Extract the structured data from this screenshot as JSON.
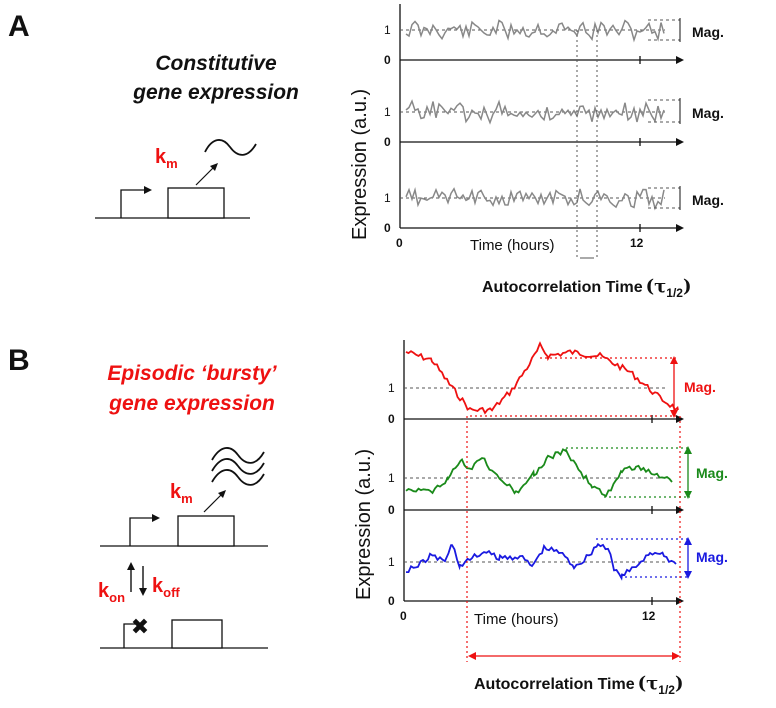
{
  "panel_a": {
    "letter": "A",
    "title_line1": "Constitutive",
    "title_line2": "gene expression",
    "rate_main": "k",
    "rate_sub": "m",
    "y_label": "Expression (a.u.)",
    "x_label": "Time (hours)",
    "mag_label": "Mag.",
    "tick_0": "0",
    "tick_1": "1",
    "x_tick_0": "0",
    "x_tick_12": "12",
    "autocorr_label": "Autocorrelation Time",
    "tau_symbol": "τ",
    "tau_sub": "1/2",
    "trace_color": "#888888"
  },
  "panel_b": {
    "letter": "B",
    "title_line1": "Episodic ‘bursty’",
    "title_line2": "gene expression",
    "rate_m_main": "k",
    "rate_m_sub": "m",
    "rate_on_main": "k",
    "rate_on_sub": "on",
    "rate_off_main": "k",
    "rate_off_sub": "off",
    "block_glyph": "✖",
    "y_label": "Expression (a.u.)",
    "x_label": "Time (hours)",
    "mag_label": "Mag.",
    "tick_0": "0",
    "tick_1": "1",
    "x_tick_0": "0",
    "x_tick_12": "12",
    "autocorr_label": "Autocorrelation Time",
    "tau_symbol": "τ",
    "tau_sub": "1/2",
    "colors": {
      "red": "#ee1111",
      "green": "#1a8a1a",
      "blue": "#1a1ae0"
    }
  }
}
